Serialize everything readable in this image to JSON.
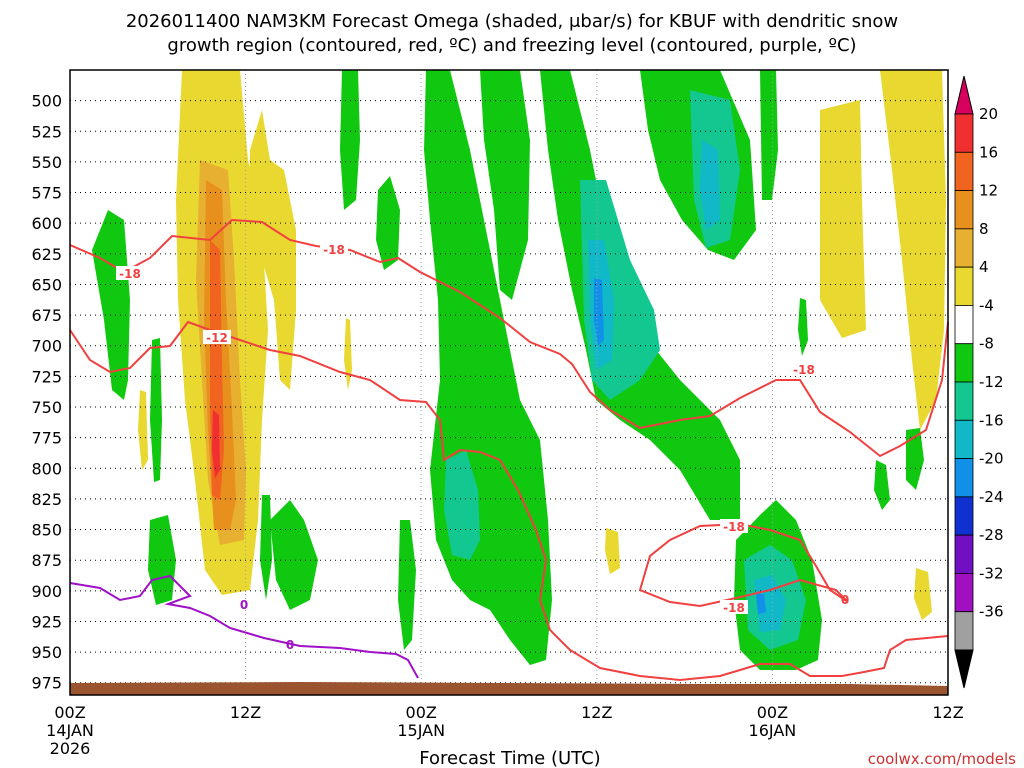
{
  "chart_data": {
    "type": "heatmap",
    "title_line1": "2026011400 NAM3KM Forecast Omega (shaded, μbar/s) for KBUF with dendritic snow",
    "title_line2": "growth region (contoured, red, ºC) and freezing level (contoured, purple, ºC)",
    "xlabel": "Forecast Time (UTC)",
    "credit": "coolwx.com/models",
    "x_ticks": [
      {
        "hour": 0,
        "label": "00Z",
        "sub1": "14JAN",
        "sub2": "2026"
      },
      {
        "hour": 12,
        "label": "12Z",
        "sub1": "",
        "sub2": ""
      },
      {
        "hour": 24,
        "label": "00Z",
        "sub1": "15JAN",
        "sub2": ""
      },
      {
        "hour": 36,
        "label": "12Z",
        "sub1": "",
        "sub2": ""
      },
      {
        "hour": 48,
        "label": "00Z",
        "sub1": "16JAN",
        "sub2": ""
      },
      {
        "hour": 60,
        "label": "12Z",
        "sub1": "",
        "sub2": ""
      }
    ],
    "x_range_hours": [
      0,
      60
    ],
    "y_ticks": [
      500,
      525,
      550,
      575,
      600,
      625,
      650,
      675,
      700,
      725,
      750,
      775,
      800,
      825,
      850,
      875,
      900,
      925,
      950,
      975
    ],
    "y_range_hpa": [
      475,
      985
    ],
    "colorbar": {
      "labels": [
        "20",
        "16",
        "12",
        "8",
        "4",
        "-4",
        "-8",
        "-12",
        "-16",
        "-20",
        "-24",
        "-28",
        "-32",
        "-36"
      ],
      "colors": [
        "#d8005f",
        "#f03030",
        "#f06420",
        "#e8901e",
        "#e8b030",
        "#e8d830",
        "#ffffff",
        "#10c810",
        "#12c890",
        "#10b8c8",
        "#1090e8",
        "#1030d0",
        "#7010c0",
        "#a010c0",
        "#a0a0a0",
        "#000000"
      ]
    },
    "contour_labels": {
      "dgz": [
        "-18",
        "-12",
        "-18",
        "-18",
        "-18",
        "-18"
      ],
      "freezing": [
        "0",
        "0",
        "0"
      ]
    },
    "colors": {
      "dgz_line": "#f04040",
      "freezing_line": "#a010c8",
      "terrain": "#9a5530",
      "grid": "#000000"
    }
  }
}
